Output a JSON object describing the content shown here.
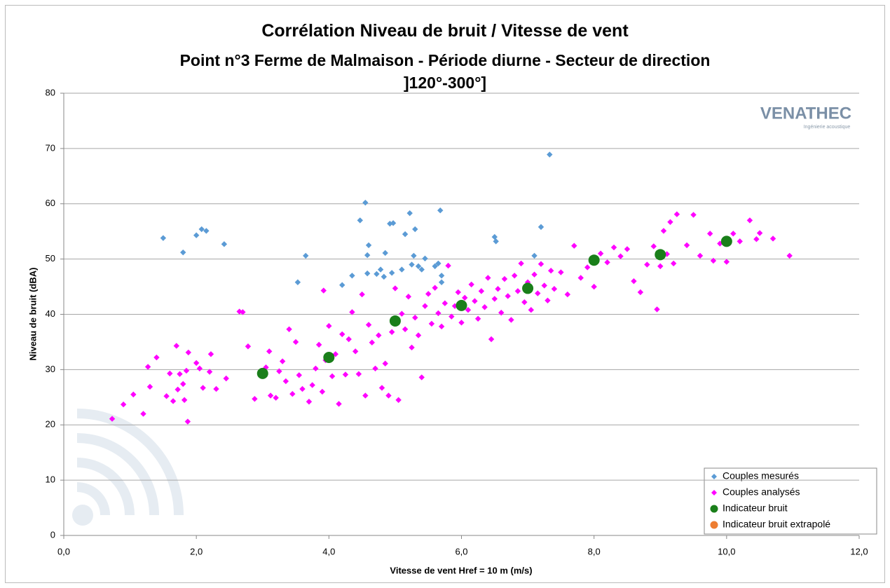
{
  "chart_data": {
    "type": "scatter",
    "title": "Corrélation Niveau de bruit / Vitesse de vent",
    "subtitle": "Point n°3 Ferme de Malmaison - Période diurne - Secteur de direction ]120°-300°]",
    "x_label": "Vitesse de vent Href = 10 m (m/s)",
    "y_label": "Niveau de bruit (dBA)",
    "xlim": [
      0,
      12
    ],
    "ylim": [
      0,
      80
    ],
    "xticks": [
      {
        "value": 0,
        "label": "0,0"
      },
      {
        "value": 2,
        "label": "2,0"
      },
      {
        "value": 4,
        "label": "4,0"
      },
      {
        "value": 6,
        "label": "6,0"
      },
      {
        "value": 8,
        "label": "8,0"
      },
      {
        "value": 10,
        "label": "10,0"
      },
      {
        "value": 12,
        "label": "12,0"
      }
    ],
    "yticks": [
      0,
      10,
      20,
      30,
      40,
      50,
      60,
      70,
      80
    ],
    "grid": true,
    "legend": "bottom-right",
    "series": [
      {
        "name": "Couples mesurés",
        "color": "#5b9bd5",
        "marker": "diamond",
        "x": [
          1.5,
          1.8,
          2.0,
          2.08,
          2.15,
          2.42,
          3.53,
          3.65,
          4.2,
          4.35,
          4.47,
          4.55,
          4.58,
          4.6,
          4.58,
          4.72,
          4.78,
          4.83,
          4.85,
          4.92,
          4.97,
          4.95,
          5.1,
          5.15,
          5.22,
          5.25,
          5.28,
          5.3,
          5.35,
          5.4,
          5.45,
          5.6,
          5.65,
          5.68,
          5.7,
          5.7,
          6.5,
          6.52,
          7.1,
          7.2,
          7.33
        ],
        "values": [
          53.8,
          51.2,
          54.3,
          55.4,
          55.1,
          52.7,
          45.8,
          50.6,
          45.3,
          47.0,
          57.0,
          60.2,
          50.7,
          52.5,
          47.4,
          47.3,
          48.1,
          46.8,
          51.1,
          56.4,
          56.5,
          47.5,
          48.1,
          54.5,
          58.3,
          49.0,
          50.6,
          55.4,
          48.7,
          48.1,
          50.1,
          48.7,
          49.2,
          58.8,
          45.8,
          47.0,
          54.0,
          53.2,
          50.6,
          55.8,
          68.9
        ]
      },
      {
        "name": "Couples analysés",
        "color": "#ff00ff",
        "marker": "diamond",
        "x": [
          0.73,
          0.9,
          1.05,
          1.2,
          1.27,
          1.3,
          1.4,
          1.55,
          1.6,
          1.65,
          1.7,
          1.72,
          1.75,
          1.8,
          1.82,
          1.85,
          1.87,
          1.88,
          2.0,
          2.05,
          2.1,
          2.2,
          2.22,
          2.3,
          2.45,
          2.65,
          2.7,
          2.78,
          2.88,
          3.05,
          3.1,
          3.12,
          3.2,
          3.25,
          3.3,
          3.35,
          3.4,
          3.45,
          3.5,
          3.55,
          3.6,
          3.7,
          3.75,
          3.8,
          3.85,
          3.9,
          3.92,
          3.95,
          4.0,
          4.05,
          4.1,
          4.15,
          4.2,
          4.25,
          4.3,
          4.35,
          4.4,
          4.45,
          4.5,
          4.55,
          4.6,
          4.65,
          4.7,
          4.75,
          4.8,
          4.85,
          4.9,
          4.95,
          5.0,
          5.05,
          5.1,
          5.15,
          5.2,
          5.25,
          5.3,
          5.35,
          5.4,
          5.45,
          5.5,
          5.55,
          5.6,
          5.65,
          5.7,
          5.75,
          5.8,
          5.85,
          5.9,
          5.95,
          6.0,
          6.05,
          6.1,
          6.15,
          6.2,
          6.25,
          6.3,
          6.35,
          6.4,
          6.45,
          6.5,
          6.55,
          6.6,
          6.65,
          6.7,
          6.75,
          6.8,
          6.85,
          6.9,
          6.95,
          7.0,
          7.05,
          7.1,
          7.15,
          7.2,
          7.25,
          7.3,
          7.35,
          7.4,
          7.5,
          7.6,
          7.7,
          7.8,
          7.9,
          8.0,
          8.1,
          8.2,
          8.3,
          8.4,
          8.5,
          8.6,
          8.7,
          8.8,
          8.9,
          8.95,
          9.0,
          9.05,
          9.1,
          9.15,
          9.2,
          9.25,
          9.4,
          9.5,
          9.6,
          9.75,
          9.8,
          9.9,
          10.0,
          10.1,
          10.2,
          10.35,
          10.45,
          10.5,
          10.7,
          10.95
        ],
        "values": [
          21.1,
          23.7,
          25.5,
          22,
          30.5,
          26.9,
          32.2,
          25.2,
          29.3,
          24.3,
          34.3,
          26.4,
          29.2,
          27.4,
          24.5,
          29.8,
          20.6,
          33.1,
          31.2,
          30.2,
          26.7,
          29.6,
          32.8,
          26.5,
          28.4,
          40.5,
          40.4,
          34.2,
          24.7,
          30.4,
          33.3,
          25.3,
          24.9,
          29.7,
          31.5,
          27.9,
          37.3,
          25.6,
          35.0,
          29.0,
          26.5,
          24.2,
          27.2,
          30.2,
          34.5,
          26.0,
          44.3,
          31.7,
          37.9,
          28.8,
          32.8,
          23.8,
          36.4,
          29.1,
          35.5,
          40.4,
          33.3,
          29.2,
          43.6,
          25.3,
          38.1,
          34.9,
          30.2,
          36.2,
          26.7,
          31.1,
          25.3,
          36.8,
          44.7,
          24.5,
          40.1,
          37.3,
          43.2,
          34.0,
          39.4,
          36.2,
          28.6,
          41.5,
          43.7,
          38.3,
          44.8,
          40.2,
          37.8,
          42.0,
          48.8,
          39.6,
          41.5,
          44.0,
          38.5,
          43.0,
          40.8,
          45.4,
          42.4,
          39.2,
          44.2,
          41.3,
          46.6,
          35.5,
          42.8,
          44.6,
          40.3,
          46.4,
          43.3,
          39.0,
          47.0,
          44.2,
          49.2,
          42.2,
          45.8,
          40.8,
          47.2,
          43.8,
          49.1,
          45.2,
          42.5,
          47.9,
          44.6,
          47.6,
          43.6,
          52.4,
          46.6,
          48.5,
          45.0,
          51.0,
          49.4,
          52.1,
          50.5,
          51.8,
          46.0,
          44.0,
          49.0,
          52.3,
          40.9,
          48.7,
          55.1,
          50.9,
          56.7,
          49.2,
          58.1,
          52.5,
          58.0,
          50.6,
          54.6,
          49.7,
          52.8,
          49.5,
          54.6,
          53.2,
          57.0,
          53.6,
          54.7,
          53.7,
          50.6
        ]
      },
      {
        "name": "Indicateur bruit",
        "color": "#1a7f1a",
        "marker": "circle",
        "x": [
          3,
          4,
          5,
          6,
          7,
          8,
          9,
          10
        ],
        "values": [
          29.3,
          32.2,
          38.8,
          41.6,
          44.7,
          49.8,
          50.8,
          53.2
        ]
      },
      {
        "name": "Indicateur bruit extrapolé",
        "color": "#ed7d31",
        "marker": "circle",
        "x": [],
        "values": []
      }
    ]
  },
  "logo": {
    "name": "VENATHEC",
    "tagline": "Ingénierie acoustique"
  }
}
